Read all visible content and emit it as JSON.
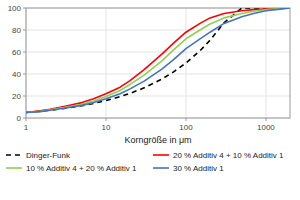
{
  "chart_data": {
    "type": "line",
    "xlabel": "Korngröße in μm",
    "x": [
      1,
      1.5,
      2,
      3,
      5,
      7,
      10,
      15,
      20,
      30,
      50,
      70,
      100,
      150,
      200,
      300,
      500,
      700,
      1000,
      1500,
      2000
    ],
    "series": [
      {
        "name": "Dinger-Funk",
        "color": "#000000",
        "line_style": "dashed",
        "values": [
          5.0,
          6.1,
          7.1,
          8.7,
          11.2,
          13.3,
          15.8,
          19.4,
          22.4,
          27.4,
          35.4,
          41.9,
          50.0,
          61.2,
          70.7,
          86.6,
          100.0,
          100.0,
          100.0,
          100.0,
          100.0
        ]
      },
      {
        "name": "20 % Additiv 4 + 10 % Additiv 1",
        "color": "#ff0000",
        "line_style": "solid",
        "values": [
          5.0,
          6.5,
          8.0,
          10.5,
          14.0,
          17.5,
          22.0,
          28.0,
          34.0,
          44.0,
          58.0,
          68.0,
          78.0,
          86.0,
          91.0,
          95.0,
          97.5,
          98.5,
          99.0,
          99.5,
          100.0
        ]
      },
      {
        "name": "10 % Additiv 4 + 20 % Additiv 1",
        "color": "#92d050",
        "line_style": "solid",
        "values": [
          5.0,
          6.0,
          7.5,
          9.5,
          12.5,
          15.5,
          19.5,
          25.0,
          30.5,
          39.0,
          52.0,
          62.0,
          72.0,
          80.0,
          85.5,
          91.0,
          95.0,
          97.0,
          98.5,
          99.5,
          100.0
        ]
      },
      {
        "name": "30 % Additiv 1",
        "color": "#4472c4",
        "line_style": "solid",
        "values": [
          5.0,
          5.8,
          7.0,
          8.8,
          11.5,
          14.0,
          17.5,
          22.0,
          26.5,
          33.5,
          44.5,
          53.0,
          63.0,
          72.0,
          78.0,
          86.0,
          92.0,
          95.0,
          97.5,
          99.0,
          100.0
        ]
      }
    ],
    "log": "x",
    "xlim": [
      1,
      2000
    ],
    "ylim": [
      0,
      100
    ],
    "xticks": [
      1,
      10,
      100,
      1000
    ],
    "yticks": [
      0,
      20,
      40,
      60,
      80,
      100
    ],
    "grid": true,
    "legend": "bottom"
  }
}
